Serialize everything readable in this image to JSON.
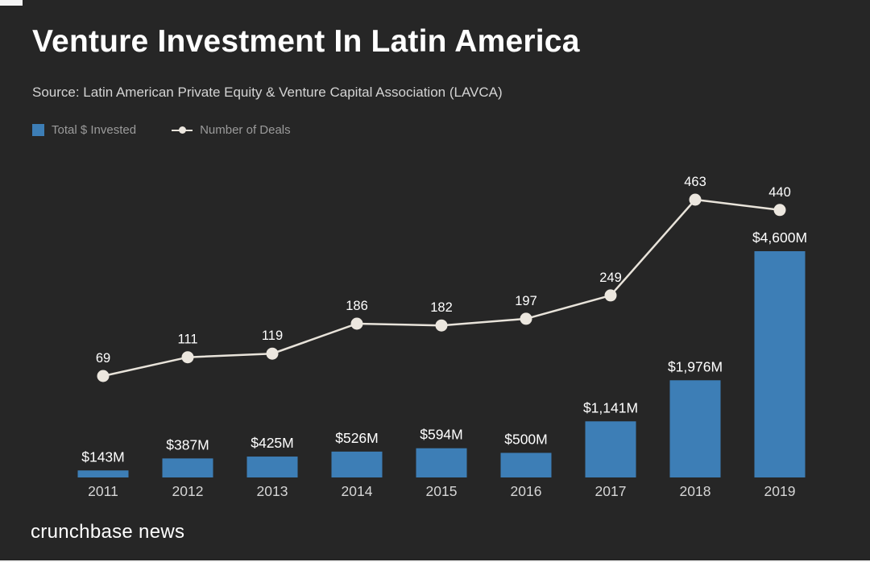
{
  "header": {
    "title": "Venture Investment In Latin America",
    "source": "Source: Latin American Private Equity & Venture Capital Association (LAVCA)"
  },
  "legend": {
    "bars_label": "Total $ Invested",
    "line_label": "Number of Deals"
  },
  "footer": {
    "brand": "crunchbase news"
  },
  "colors": {
    "background": "#262626",
    "bar": "#3d7eb6",
    "line": "#e8e3da",
    "marker": "#ece7df",
    "value_text": "#ffffff",
    "deal_text": "#ffffff",
    "year_text": "#d6d6d6",
    "source_text": "#d4d4d4",
    "legend_text": "#9b9b9b"
  },
  "chart_data": {
    "type": "bar",
    "subtype": "bar-line-combo",
    "title": "Venture Investment In Latin America",
    "source": "Latin American Private Equity & Venture Capital Association (LAVCA)",
    "categories": [
      "2011",
      "2012",
      "2013",
      "2014",
      "2015",
      "2016",
      "2017",
      "2018",
      "2019"
    ],
    "series": [
      {
        "name": "Total $ Invested",
        "type": "bar",
        "unit": "USD millions",
        "values": [
          143,
          387,
          425,
          526,
          594,
          500,
          1141,
          1976,
          4600
        ],
        "labels": [
          "$143M",
          "$387M",
          "$425M",
          "$526M",
          "$594M",
          "$500M",
          "$1,141M",
          "$1,976M",
          "$4,600M"
        ]
      },
      {
        "name": "Number of Deals",
        "type": "line",
        "values": [
          69,
          111,
          119,
          186,
          182,
          197,
          249,
          463,
          440
        ],
        "labels": [
          "69",
          "111",
          "119",
          "186",
          "182",
          "197",
          "249",
          "463",
          "440"
        ]
      }
    ],
    "xlabel": "",
    "ylabel": "",
    "grid": false,
    "legend_position": "top-left",
    "bar_axis_range": [
      0,
      4600
    ],
    "line_axis_range": [
      69,
      463
    ]
  }
}
